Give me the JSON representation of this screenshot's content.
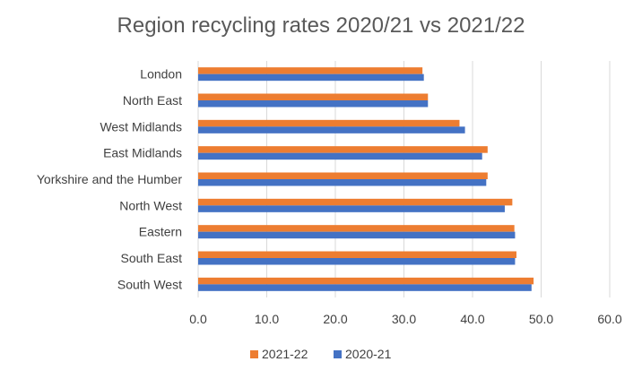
{
  "chart_data": {
    "type": "bar",
    "orientation": "horizontal",
    "title": "Region recycling rates 2020/21 vs 2021/22",
    "categories": [
      "London",
      "North East",
      "West Midlands",
      "East Midlands",
      "Yorkshire and the Humber",
      "North West",
      "Eastern",
      "South East",
      "South West"
    ],
    "series": [
      {
        "name": "2021-22",
        "color": "#ed7d31",
        "values": [
          32.7,
          33.5,
          38.1,
          42.2,
          42.2,
          45.8,
          46.1,
          46.4,
          48.9
        ]
      },
      {
        "name": "2020-21",
        "color": "#4472c4",
        "values": [
          32.9,
          33.5,
          38.9,
          41.4,
          42.0,
          44.7,
          46.2,
          46.2,
          48.6
        ]
      }
    ],
    "xlim": [
      0,
      60
    ],
    "xticks": [
      "0.0",
      "10.0",
      "20.0",
      "30.0",
      "40.0",
      "50.0",
      "60.0"
    ],
    "xlabel": "",
    "ylabel": "",
    "grid": "vertical",
    "legend": "bottom"
  }
}
